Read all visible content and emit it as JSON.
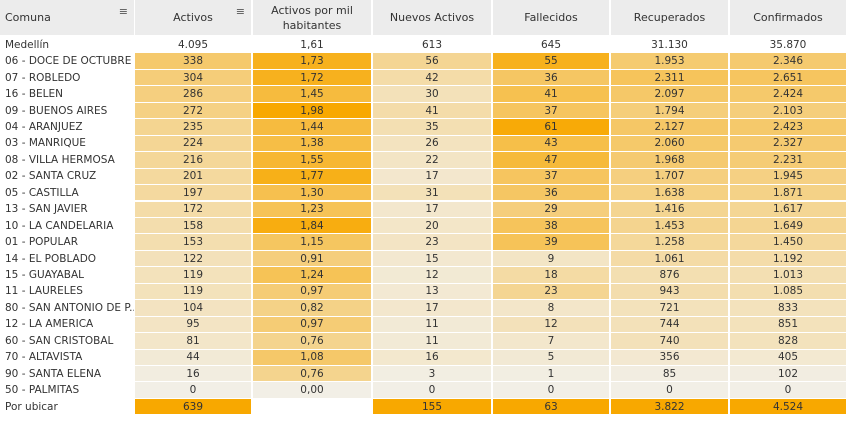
{
  "table": {
    "columns": [
      "Comuna",
      "Activos",
      "Activos por mil habitantes",
      "Nuevos Activos",
      "Fallecidos",
      "Recuperados",
      "Confirmados"
    ],
    "total_row": {
      "label": "Medellín",
      "cells": [
        "4.095",
        "1,61",
        "613",
        "645",
        "31.130",
        "35.870"
      ]
    },
    "rows": [
      {
        "label": "06 - DOCE DE OCTUBRE",
        "cells": [
          "338",
          "1,73",
          "56",
          "55",
          "1.953",
          "2.346"
        ]
      },
      {
        "label": "07 - ROBLEDO",
        "cells": [
          "304",
          "1,72",
          "42",
          "36",
          "2.311",
          "2.651"
        ]
      },
      {
        "label": "16 - BELEN",
        "cells": [
          "286",
          "1,45",
          "30",
          "41",
          "2.097",
          "2.424"
        ]
      },
      {
        "label": "09 - BUENOS AIRES",
        "cells": [
          "272",
          "1,98",
          "41",
          "37",
          "1.794",
          "2.103"
        ]
      },
      {
        "label": "04 - ARANJUEZ",
        "cells": [
          "235",
          "1,44",
          "35",
          "61",
          "2.127",
          "2.423"
        ]
      },
      {
        "label": "03 - MANRIQUE",
        "cells": [
          "224",
          "1,38",
          "26",
          "43",
          "2.060",
          "2.327"
        ]
      },
      {
        "label": "08 - VILLA HERMOSA",
        "cells": [
          "216",
          "1,55",
          "22",
          "47",
          "1.968",
          "2.231"
        ]
      },
      {
        "label": "02 - SANTA CRUZ",
        "cells": [
          "201",
          "1,77",
          "17",
          "37",
          "1.707",
          "1.945"
        ]
      },
      {
        "label": "05 - CASTILLA",
        "cells": [
          "197",
          "1,30",
          "31",
          "36",
          "1.638",
          "1.871"
        ]
      },
      {
        "label": "13 - SAN JAVIER",
        "cells": [
          "172",
          "1,23",
          "17",
          "29",
          "1.416",
          "1.617"
        ]
      },
      {
        "label": "10 - LA CANDELARIA",
        "cells": [
          "158",
          "1,84",
          "20",
          "38",
          "1.453",
          "1.649"
        ]
      },
      {
        "label": "01 - POPULAR",
        "cells": [
          "153",
          "1,15",
          "23",
          "39",
          "1.258",
          "1.450"
        ]
      },
      {
        "label": "14 - EL POBLADO",
        "cells": [
          "122",
          "0,91",
          "15",
          "9",
          "1.061",
          "1.192"
        ]
      },
      {
        "label": "15 - GUAYABAL",
        "cells": [
          "119",
          "1,24",
          "12",
          "18",
          "876",
          "1.013"
        ]
      },
      {
        "label": "11 - LAURELES",
        "cells": [
          "119",
          "0,97",
          "13",
          "23",
          "943",
          "1.085"
        ]
      },
      {
        "label": "80 - SAN ANTONIO DE P..",
        "cells": [
          "104",
          "0,82",
          "17",
          "8",
          "721",
          "833"
        ]
      },
      {
        "label": "12 - LA AMERICA",
        "cells": [
          "95",
          "0,97",
          "11",
          "12",
          "744",
          "851"
        ]
      },
      {
        "label": "60 - SAN CRISTOBAL",
        "cells": [
          "81",
          "0,76",
          "11",
          "7",
          "740",
          "828"
        ]
      },
      {
        "label": "70 - ALTAVISTA",
        "cells": [
          "44",
          "1,08",
          "16",
          "5",
          "356",
          "405"
        ]
      },
      {
        "label": "90 - SANTA ELENA",
        "cells": [
          "16",
          "0,76",
          "3",
          "1",
          "85",
          "102"
        ]
      },
      {
        "label": "50 - PALMITAS",
        "cells": [
          "0",
          "0,00",
          "0",
          "0",
          "0",
          "0"
        ]
      }
    ],
    "unassigned_row": {
      "label": "Por ubicar",
      "cells": [
        "639",
        null,
        "155",
        "63",
        "3.822",
        "4.524"
      ]
    }
  }
}
